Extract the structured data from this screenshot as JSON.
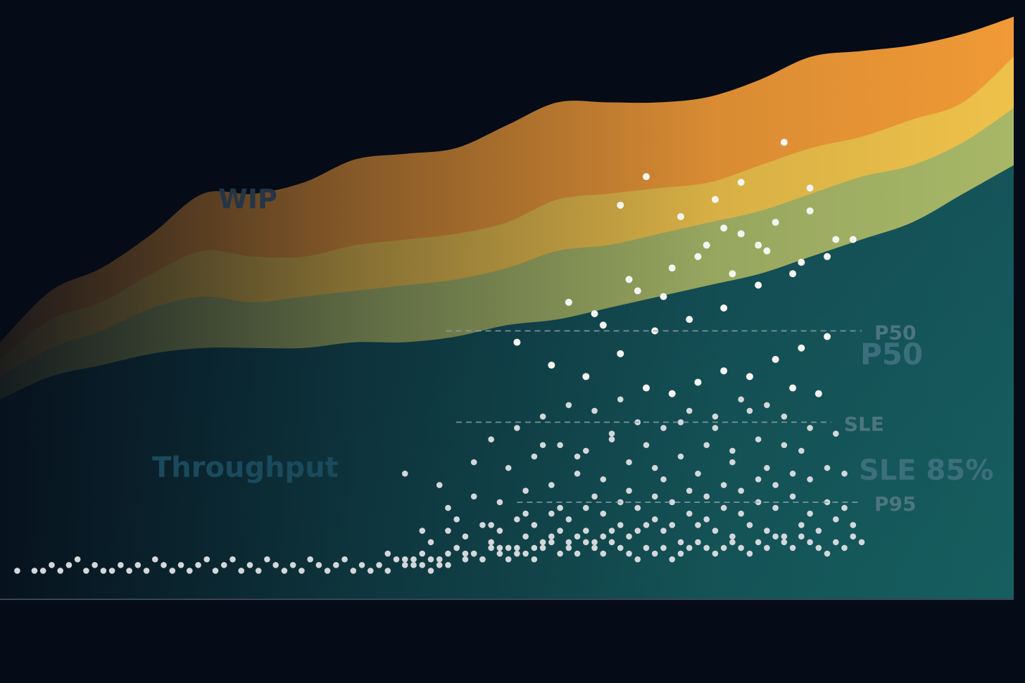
{
  "chart_data": {
    "type": "area",
    "title": "",
    "xlabel": "",
    "ylabel": "",
    "grid": false,
    "xlim": [
      0,
      100
    ],
    "ylim": [
      0,
      100
    ],
    "bands": [
      {
        "name": "WIP",
        "color": "#f19a36"
      },
      {
        "color": "#efc24a"
      },
      {
        "color": "#a8b867"
      },
      {
        "name": "Throughput",
        "color": "#1f8a7e"
      }
    ],
    "band_x": [
      0,
      5,
      10,
      15,
      20,
      25,
      30,
      35,
      40,
      45,
      50,
      55,
      60,
      65,
      70,
      75,
      80,
      85,
      90,
      95,
      100
    ],
    "band_tops": [
      [
        45,
        54,
        58,
        64,
        71,
        71,
        73,
        77,
        78,
        79,
        83,
        87,
        87,
        87,
        88,
        91,
        95,
        96,
        97,
        99,
        102
      ],
      [
        42,
        49,
        52,
        57,
        61,
        60,
        60,
        62,
        63,
        64,
        66,
        70,
        71,
        72,
        73,
        76,
        79,
        81,
        84,
        87,
        95
      ],
      [
        39,
        44,
        47,
        51,
        53,
        52,
        53,
        54,
        55,
        56,
        58,
        61,
        62,
        64,
        66,
        68,
        71,
        74,
        76,
        80,
        86
      ],
      [
        35,
        39,
        41,
        43,
        44,
        44,
        44,
        45,
        45,
        46,
        48,
        49,
        51,
        53,
        55,
        57,
        60,
        63,
        66,
        71,
        76
      ]
    ],
    "points": [
      [
        2,
        5
      ],
      [
        4,
        5
      ],
      [
        5,
        5
      ],
      [
        6,
        6
      ],
      [
        7,
        5
      ],
      [
        8,
        6
      ],
      [
        9,
        7
      ],
      [
        10,
        5
      ],
      [
        11,
        6
      ],
      [
        12,
        5
      ],
      [
        13,
        5
      ],
      [
        14,
        6
      ],
      [
        15,
        5
      ],
      [
        16,
        6
      ],
      [
        17,
        5
      ],
      [
        18,
        7
      ],
      [
        19,
        6
      ],
      [
        20,
        5
      ],
      [
        21,
        6
      ],
      [
        22,
        5
      ],
      [
        23,
        6
      ],
      [
        24,
        7
      ],
      [
        25,
        5
      ],
      [
        26,
        6
      ],
      [
        27,
        7
      ],
      [
        28,
        5
      ],
      [
        29,
        6
      ],
      [
        30,
        5
      ],
      [
        31,
        7
      ],
      [
        32,
        6
      ],
      [
        33,
        5
      ],
      [
        34,
        6
      ],
      [
        35,
        5
      ],
      [
        36,
        7
      ],
      [
        37,
        6
      ],
      [
        38,
        5
      ],
      [
        39,
        6
      ],
      [
        40,
        7
      ],
      [
        41,
        5
      ],
      [
        42,
        6
      ],
      [
        43,
        5
      ],
      [
        44,
        6
      ],
      [
        45,
        5
      ],
      [
        46,
        7
      ],
      [
        47,
        6
      ],
      [
        48,
        7
      ],
      [
        49,
        6
      ],
      [
        50,
        5
      ],
      [
        51,
        6
      ],
      [
        52,
        8
      ],
      [
        53,
        9
      ],
      [
        54,
        7
      ],
      [
        55,
        8
      ],
      [
        56,
        7
      ],
      [
        57,
        9
      ],
      [
        58,
        8
      ],
      [
        59,
        7
      ],
      [
        60,
        9
      ],
      [
        61,
        8
      ],
      [
        62,
        7
      ],
      [
        63,
        9
      ],
      [
        64,
        10
      ],
      [
        65,
        8
      ],
      [
        66,
        9
      ],
      [
        67,
        8
      ],
      [
        68,
        10
      ],
      [
        69,
        9
      ],
      [
        70,
        8
      ],
      [
        71,
        10
      ],
      [
        72,
        9
      ],
      [
        73,
        8
      ],
      [
        74,
        7
      ],
      [
        75,
        9
      ],
      [
        76,
        8
      ],
      [
        77,
        9
      ],
      [
        78,
        7
      ],
      [
        79,
        8
      ],
      [
        80,
        9
      ],
      [
        81,
        10
      ],
      [
        82,
        9
      ],
      [
        83,
        8
      ],
      [
        84,
        9
      ],
      [
        85,
        10
      ],
      [
        86,
        9
      ],
      [
        87,
        8
      ],
      [
        88,
        10
      ],
      [
        89,
        9
      ],
      [
        90,
        11
      ],
      [
        91,
        10
      ],
      [
        92,
        9
      ],
      [
        93,
        11
      ],
      [
        94,
        10
      ],
      [
        95,
        9
      ],
      [
        96,
        8
      ],
      [
        97,
        10
      ],
      [
        98,
        9
      ],
      [
        99,
        11
      ],
      [
        100,
        10
      ],
      [
        45,
        8
      ],
      [
        47,
        7
      ],
      [
        49,
        8
      ],
      [
        51,
        7
      ],
      [
        53,
        9
      ],
      [
        55,
        8
      ],
      [
        57,
        10
      ],
      [
        59,
        9
      ],
      [
        61,
        11
      ],
      [
        63,
        10
      ],
      [
        65,
        12
      ],
      [
        67,
        11
      ],
      [
        69,
        10
      ],
      [
        71,
        12
      ],
      [
        73,
        11
      ],
      [
        75,
        13
      ],
      [
        77,
        12
      ],
      [
        79,
        10
      ],
      [
        81,
        13
      ],
      [
        83,
        12
      ],
      [
        85,
        11
      ],
      [
        87,
        13
      ],
      [
        89,
        12
      ],
      [
        91,
        11
      ],
      [
        93,
        13
      ],
      [
        95,
        12
      ],
      [
        97,
        14
      ],
      [
        99,
        13
      ],
      [
        48,
        6
      ],
      [
        50,
        7
      ],
      [
        52,
        6
      ],
      [
        54,
        8
      ],
      [
        56,
        7
      ],
      [
        58,
        9
      ],
      [
        60,
        8
      ],
      [
        62,
        9
      ],
      [
        64,
        11
      ],
      [
        66,
        10
      ],
      [
        68,
        12
      ],
      [
        70,
        11
      ],
      [
        72,
        13
      ],
      [
        74,
        12
      ],
      [
        76,
        14
      ],
      [
        78,
        13
      ],
      [
        80,
        15
      ],
      [
        82,
        14
      ],
      [
        84,
        16
      ],
      [
        86,
        15
      ],
      [
        88,
        17
      ],
      [
        90,
        16
      ],
      [
        92,
        18
      ],
      [
        94,
        15
      ],
      [
        96,
        17
      ],
      [
        98,
        16
      ],
      [
        50,
        10
      ],
      [
        52,
        12
      ],
      [
        54,
        11
      ],
      [
        56,
        13
      ],
      [
        58,
        12
      ],
      [
        60,
        14
      ],
      [
        62,
        13
      ],
      [
        64,
        15
      ],
      [
        66,
        14
      ],
      [
        68,
        16
      ],
      [
        70,
        15
      ],
      [
        72,
        17
      ],
      [
        74,
        16
      ],
      [
        76,
        18
      ],
      [
        78,
        17
      ],
      [
        80,
        19
      ],
      [
        82,
        18
      ],
      [
        84,
        20
      ],
      [
        86,
        19
      ],
      [
        88,
        21
      ],
      [
        90,
        20
      ],
      [
        92,
        22
      ],
      [
        94,
        21
      ],
      [
        96,
        23
      ],
      [
        98,
        22
      ],
      [
        52,
        16
      ],
      [
        55,
        18
      ],
      [
        58,
        17
      ],
      [
        61,
        19
      ],
      [
        64,
        20
      ],
      [
        67,
        22
      ],
      [
        70,
        21
      ],
      [
        73,
        24
      ],
      [
        76,
        23
      ],
      [
        79,
        25
      ],
      [
        82,
        27
      ],
      [
        85,
        26
      ],
      [
        88,
        28
      ],
      [
        91,
        27
      ],
      [
        94,
        30
      ],
      [
        97,
        29
      ],
      [
        57,
        28
      ],
      [
        60,
        30
      ],
      [
        63,
        32
      ],
      [
        66,
        34
      ],
      [
        69,
        33
      ],
      [
        72,
        35
      ],
      [
        75,
        37
      ],
      [
        78,
        36
      ],
      [
        81,
        38
      ],
      [
        84,
        40
      ],
      [
        87,
        39
      ],
      [
        90,
        42
      ],
      [
        93,
        44
      ],
      [
        96,
        46
      ],
      [
        62,
        25
      ],
      [
        65,
        27
      ],
      [
        68,
        26
      ],
      [
        71,
        29
      ],
      [
        74,
        31
      ],
      [
        77,
        30
      ],
      [
        80,
        33
      ],
      [
        83,
        32
      ],
      [
        86,
        35
      ],
      [
        89,
        34
      ],
      [
        92,
        37
      ],
      [
        95,
        36
      ],
      [
        49,
        12
      ],
      [
        53,
        14
      ],
      [
        57,
        13
      ],
      [
        61,
        15
      ],
      [
        65,
        16
      ],
      [
        69,
        18
      ],
      [
        73,
        19
      ],
      [
        77,
        21
      ],
      [
        81,
        22
      ],
      [
        85,
        24
      ],
      [
        89,
        23
      ],
      [
        93,
        26
      ],
      [
        47,
        22
      ],
      [
        51,
        20
      ],
      [
        55,
        24
      ],
      [
        59,
        23
      ],
      [
        63,
        27
      ],
      [
        67,
        25
      ],
      [
        71,
        28
      ],
      [
        75,
        27
      ],
      [
        79,
        31
      ],
      [
        83,
        30
      ],
      [
        87,
        33
      ],
      [
        91,
        32
      ],
      [
        60,
        45
      ],
      [
        64,
        41
      ],
      [
        68,
        39
      ],
      [
        72,
        43
      ],
      [
        76,
        47
      ],
      [
        80,
        49
      ],
      [
        84,
        51
      ],
      [
        88,
        55
      ],
      [
        92,
        57
      ],
      [
        96,
        60
      ],
      [
        66,
        52
      ],
      [
        70,
        48
      ],
      [
        74,
        54
      ],
      [
        78,
        58
      ],
      [
        82,
        62
      ],
      [
        86,
        64
      ],
      [
        90,
        66
      ],
      [
        94,
        68
      ],
      [
        69,
        50
      ],
      [
        73,
        56
      ],
      [
        77,
        53
      ],
      [
        81,
        60
      ],
      [
        85,
        57
      ],
      [
        89,
        61
      ],
      [
        93,
        59
      ],
      [
        97,
        63
      ],
      [
        91,
        80
      ],
      [
        86,
        73
      ],
      [
        75,
        74
      ],
      [
        83,
        70
      ],
      [
        72,
        69
      ],
      [
        84,
        65
      ],
      [
        79,
        67
      ],
      [
        94,
        72
      ],
      [
        88,
        62
      ],
      [
        99,
        63
      ]
    ],
    "reference_lines": [
      {
        "label": "P50",
        "x0": 44,
        "x1": 85,
        "y": 47
      },
      {
        "label": "SLE",
        "x0": 45,
        "x1": 82,
        "y": 31
      },
      {
        "label": "P95",
        "x0": 51,
        "x1": 85,
        "y": 17
      }
    ],
    "annotations": {
      "p50_big": "P50",
      "sle_big": "SLE 85%"
    }
  }
}
